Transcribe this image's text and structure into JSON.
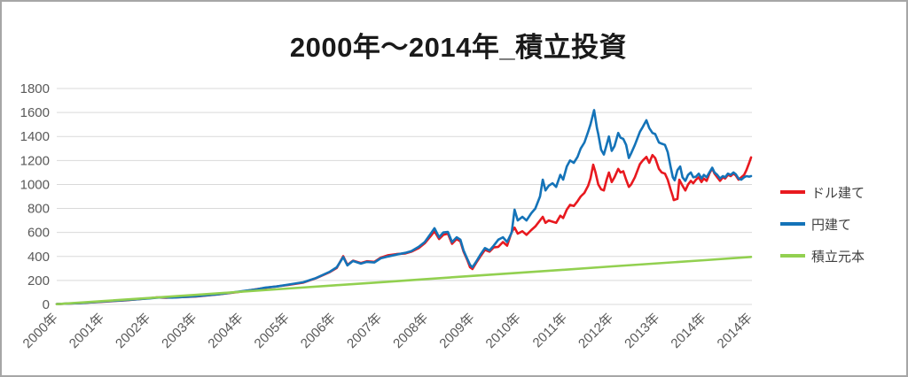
{
  "chart": {
    "title": "2000年〜2014年_積立投資",
    "colors": {
      "background": "#ffffff",
      "frame_border": "#a6a6a6",
      "gridline": "#d9d9d9",
      "axis_label": "#595959",
      "legend_label": "#3f3f3f",
      "title": "#1a1a1a"
    }
  },
  "chart_data": {
    "type": "line",
    "title": "2000年〜2014年_積立投資",
    "xlabel": "",
    "ylabel": "",
    "ylim": [
      0,
      1800
    ],
    "y_tick_step": 200,
    "y_tick_labels": [
      "0",
      "200",
      "400",
      "600",
      "800",
      "1000",
      "1200",
      "1400",
      "1600",
      "1800"
    ],
    "x_tick_labels": [
      "2000年",
      "2001年",
      "2002年",
      "2003年",
      "2004年",
      "2005年",
      "2006年",
      "2007年",
      "2008年",
      "2009年",
      "2010年",
      "2011年",
      "2012年",
      "2013年",
      "2014年",
      "2014年"
    ],
    "x_unit": "years since Jan 2000 (one tick per year, final tick = Dec 2014)",
    "grid": "horizontal only",
    "legend_position": "right",
    "series": [
      {
        "name": "ドル建て",
        "color": "#e8191f",
        "points": [
          [
            0,
            3
          ],
          [
            0.5,
            11
          ],
          [
            1,
            23
          ],
          [
            1.5,
            35
          ],
          [
            2,
            52
          ],
          [
            2.16,
            58
          ],
          [
            2.36,
            55
          ],
          [
            3,
            66
          ],
          [
            3.5,
            84
          ],
          [
            4,
            108
          ],
          [
            4.5,
            138
          ],
          [
            5,
            162
          ],
          [
            5.33,
            182
          ],
          [
            5.6,
            218
          ],
          [
            5.9,
            270
          ],
          [
            6.05,
            305
          ],
          [
            6.19,
            402
          ],
          [
            6.28,
            330
          ],
          [
            6.4,
            365
          ],
          [
            6.57,
            345
          ],
          [
            6.7,
            360
          ],
          [
            6.86,
            355
          ],
          [
            7,
            390
          ],
          [
            7.16,
            410
          ],
          [
            7.34,
            420
          ],
          [
            7.53,
            425
          ],
          [
            7.66,
            440
          ],
          [
            7.82,
            470
          ],
          [
            7.95,
            510
          ],
          [
            8.08,
            570
          ],
          [
            8.16,
            610
          ],
          [
            8.26,
            545
          ],
          [
            8.35,
            580
          ],
          [
            8.45,
            590
          ],
          [
            8.54,
            505
          ],
          [
            8.64,
            545
          ],
          [
            8.72,
            525
          ],
          [
            8.79,
            440
          ],
          [
            8.87,
            370
          ],
          [
            8.93,
            310
          ],
          [
            8.98,
            295
          ],
          [
            9.06,
            345
          ],
          [
            9.16,
            405
          ],
          [
            9.25,
            455
          ],
          [
            9.35,
            440
          ],
          [
            9.44,
            475
          ],
          [
            9.54,
            480
          ],
          [
            9.64,
            520
          ],
          [
            9.73,
            490
          ],
          [
            9.83,
            605
          ],
          [
            9.89,
            640
          ],
          [
            9.96,
            590
          ],
          [
            10.06,
            610
          ],
          [
            10.15,
            580
          ],
          [
            10.25,
            620
          ],
          [
            10.34,
            650
          ],
          [
            10.44,
            700
          ],
          [
            10.5,
            730
          ],
          [
            10.56,
            680
          ],
          [
            10.63,
            700
          ],
          [
            10.71,
            690
          ],
          [
            10.79,
            680
          ],
          [
            10.88,
            740
          ],
          [
            10.94,
            720
          ],
          [
            11.02,
            790
          ],
          [
            11.09,
            830
          ],
          [
            11.17,
            820
          ],
          [
            11.25,
            860
          ],
          [
            11.32,
            900
          ],
          [
            11.4,
            930
          ],
          [
            11.48,
            990
          ],
          [
            11.53,
            1050
          ],
          [
            11.59,
            1165
          ],
          [
            11.64,
            1100
          ],
          [
            11.7,
            1000
          ],
          [
            11.76,
            960
          ],
          [
            11.82,
            950
          ],
          [
            11.88,
            1040
          ],
          [
            11.93,
            1100
          ],
          [
            11.99,
            1020
          ],
          [
            12.05,
            1060
          ],
          [
            12.13,
            1130
          ],
          [
            12.18,
            1100
          ],
          [
            12.24,
            1110
          ],
          [
            12.3,
            1040
          ],
          [
            12.36,
            980
          ],
          [
            12.41,
            1000
          ],
          [
            12.49,
            1060
          ],
          [
            12.55,
            1120
          ],
          [
            12.6,
            1170
          ],
          [
            12.66,
            1200
          ],
          [
            12.74,
            1230
          ],
          [
            12.8,
            1180
          ],
          [
            12.87,
            1245
          ],
          [
            12.93,
            1220
          ],
          [
            13.01,
            1130
          ],
          [
            13.07,
            1100
          ],
          [
            13.14,
            1090
          ],
          [
            13.2,
            1040
          ],
          [
            13.26,
            960
          ],
          [
            13.31,
            900
          ],
          [
            13.33,
            870
          ],
          [
            13.41,
            880
          ],
          [
            13.45,
            1040
          ],
          [
            13.52,
            990
          ],
          [
            13.58,
            950
          ],
          [
            13.64,
            1000
          ],
          [
            13.7,
            1030
          ],
          [
            13.75,
            1010
          ],
          [
            13.81,
            1040
          ],
          [
            13.87,
            1060
          ],
          [
            13.93,
            1020
          ],
          [
            13.98,
            1050
          ],
          [
            14.04,
            1030
          ],
          [
            14.1,
            1090
          ],
          [
            14.16,
            1135
          ],
          [
            14.21,
            1090
          ],
          [
            14.27,
            1060
          ],
          [
            14.33,
            1030
          ],
          [
            14.39,
            1060
          ],
          [
            14.44,
            1050
          ],
          [
            14.5,
            1080
          ],
          [
            14.56,
            1070
          ],
          [
            14.62,
            1090
          ],
          [
            14.67,
            1075
          ],
          [
            14.73,
            1040
          ],
          [
            14.79,
            1060
          ],
          [
            14.85,
            1080
          ],
          [
            14.9,
            1120
          ],
          [
            14.96,
            1180
          ],
          [
            15,
            1225
          ]
        ]
      },
      {
        "name": "円建て",
        "color": "#1473b8",
        "points": [
          [
            0,
            3
          ],
          [
            0.5,
            12
          ],
          [
            1,
            24
          ],
          [
            1.5,
            36
          ],
          [
            2,
            50
          ],
          [
            2.26,
            60
          ],
          [
            2.49,
            57
          ],
          [
            3,
            68
          ],
          [
            3.5,
            85
          ],
          [
            4,
            110
          ],
          [
            4.3,
            125
          ],
          [
            4.5,
            140
          ],
          [
            4.75,
            150
          ],
          [
            5,
            165
          ],
          [
            5.33,
            185
          ],
          [
            5.6,
            220
          ],
          [
            5.9,
            273
          ],
          [
            6.05,
            310
          ],
          [
            6.19,
            395
          ],
          [
            6.28,
            325
          ],
          [
            6.4,
            362
          ],
          [
            6.57,
            340
          ],
          [
            6.7,
            355
          ],
          [
            6.86,
            350
          ],
          [
            7,
            384
          ],
          [
            7.16,
            400
          ],
          [
            7.34,
            415
          ],
          [
            7.53,
            430
          ],
          [
            7.66,
            445
          ],
          [
            7.82,
            480
          ],
          [
            7.95,
            520
          ],
          [
            8.08,
            590
          ],
          [
            8.16,
            635
          ],
          [
            8.26,
            560
          ],
          [
            8.35,
            600
          ],
          [
            8.45,
            605
          ],
          [
            8.54,
            520
          ],
          [
            8.64,
            560
          ],
          [
            8.72,
            540
          ],
          [
            8.79,
            450
          ],
          [
            8.87,
            380
          ],
          [
            8.93,
            330
          ],
          [
            8.98,
            310
          ],
          [
            9.06,
            355
          ],
          [
            9.16,
            420
          ],
          [
            9.25,
            470
          ],
          [
            9.35,
            450
          ],
          [
            9.44,
            490
          ],
          [
            9.54,
            540
          ],
          [
            9.64,
            560
          ],
          [
            9.73,
            520
          ],
          [
            9.83,
            600
          ],
          [
            9.89,
            790
          ],
          [
            9.96,
            700
          ],
          [
            10.06,
            730
          ],
          [
            10.15,
            700
          ],
          [
            10.25,
            760
          ],
          [
            10.34,
            800
          ],
          [
            10.44,
            900
          ],
          [
            10.5,
            1040
          ],
          [
            10.56,
            950
          ],
          [
            10.63,
            990
          ],
          [
            10.71,
            1010
          ],
          [
            10.79,
            980
          ],
          [
            10.88,
            1080
          ],
          [
            10.94,
            1040
          ],
          [
            11.02,
            1150
          ],
          [
            11.09,
            1200
          ],
          [
            11.17,
            1180
          ],
          [
            11.25,
            1230
          ],
          [
            11.32,
            1300
          ],
          [
            11.4,
            1350
          ],
          [
            11.48,
            1440
          ],
          [
            11.53,
            1500
          ],
          [
            11.61,
            1620
          ],
          [
            11.67,
            1470
          ],
          [
            11.7,
            1420
          ],
          [
            11.76,
            1290
          ],
          [
            11.82,
            1250
          ],
          [
            11.88,
            1330
          ],
          [
            11.93,
            1400
          ],
          [
            11.99,
            1280
          ],
          [
            12.05,
            1320
          ],
          [
            12.13,
            1430
          ],
          [
            12.18,
            1390
          ],
          [
            12.24,
            1380
          ],
          [
            12.3,
            1330
          ],
          [
            12.36,
            1220
          ],
          [
            12.41,
            1260
          ],
          [
            12.49,
            1330
          ],
          [
            12.55,
            1390
          ],
          [
            12.6,
            1440
          ],
          [
            12.66,
            1480
          ],
          [
            12.74,
            1535
          ],
          [
            12.8,
            1470
          ],
          [
            12.87,
            1430
          ],
          [
            12.93,
            1420
          ],
          [
            13.01,
            1350
          ],
          [
            13.07,
            1340
          ],
          [
            13.14,
            1330
          ],
          [
            13.2,
            1270
          ],
          [
            13.26,
            1150
          ],
          [
            13.31,
            1060
          ],
          [
            13.35,
            1035
          ],
          [
            13.41,
            1120
          ],
          [
            13.47,
            1150
          ],
          [
            13.52,
            1060
          ],
          [
            13.58,
            1030
          ],
          [
            13.64,
            1080
          ],
          [
            13.7,
            1100
          ],
          [
            13.75,
            1060
          ],
          [
            13.81,
            1065
          ],
          [
            13.87,
            1090
          ],
          [
            13.93,
            1050
          ],
          [
            13.98,
            1080
          ],
          [
            14.04,
            1060
          ],
          [
            14.1,
            1100
          ],
          [
            14.16,
            1140
          ],
          [
            14.21,
            1100
          ],
          [
            14.27,
            1080
          ],
          [
            14.33,
            1050
          ],
          [
            14.39,
            1070
          ],
          [
            14.44,
            1060
          ],
          [
            14.5,
            1090
          ],
          [
            14.56,
            1080
          ],
          [
            14.62,
            1100
          ],
          [
            14.67,
            1085
          ],
          [
            14.73,
            1050
          ],
          [
            14.79,
            1040
          ],
          [
            14.85,
            1060
          ],
          [
            14.9,
            1070
          ],
          [
            14.96,
            1065
          ],
          [
            15,
            1070
          ]
        ]
      },
      {
        "name": "積立元本",
        "color": "#92d050",
        "points": [
          [
            0,
            2
          ],
          [
            1,
            28
          ],
          [
            2,
            54
          ],
          [
            3,
            80
          ],
          [
            4,
            106
          ],
          [
            5,
            133
          ],
          [
            6,
            159
          ],
          [
            7,
            185
          ],
          [
            8,
            212
          ],
          [
            9,
            238
          ],
          [
            10,
            264
          ],
          [
            11,
            290
          ],
          [
            12,
            317
          ],
          [
            13,
            343
          ],
          [
            14,
            369
          ],
          [
            15,
            396
          ]
        ]
      }
    ]
  }
}
